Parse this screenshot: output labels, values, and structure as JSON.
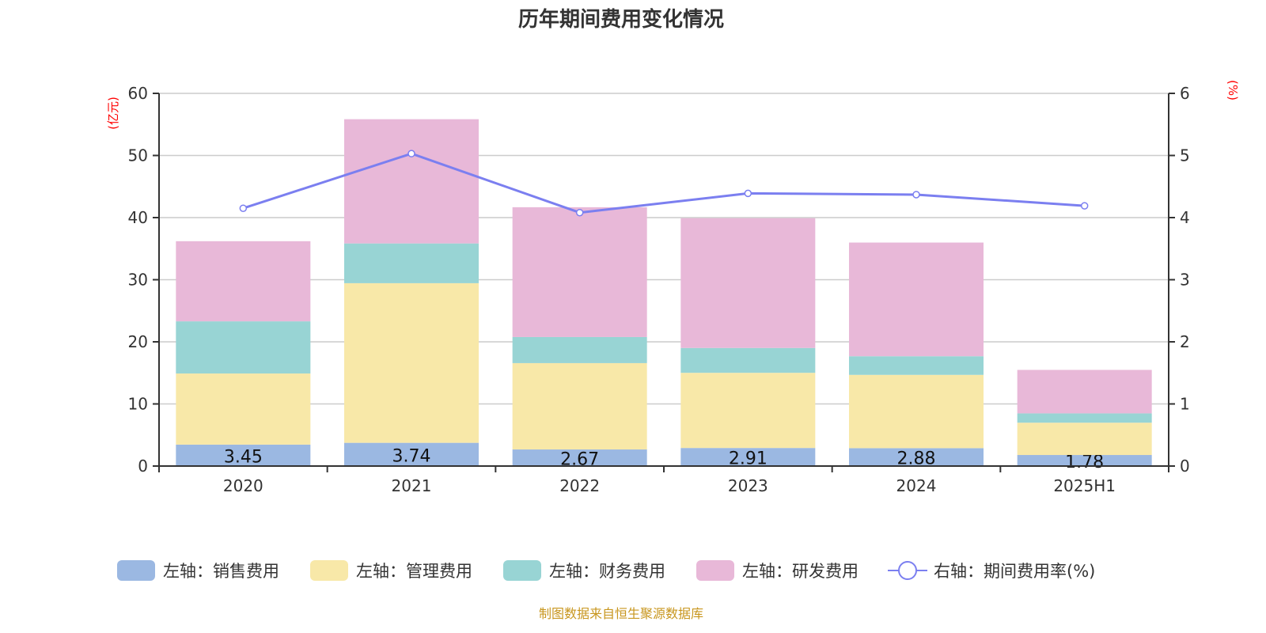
{
  "chart_data": {
    "type": "bar",
    "stacked": true,
    "title": "历年期间费用变化情况",
    "ylabel_left": "(亿元)",
    "ylabel_right": "(%)",
    "ylim_left": [
      0,
      60
    ],
    "ylim_right": [
      0,
      6
    ],
    "yticks_left": [
      0,
      10,
      20,
      30,
      40,
      50,
      60
    ],
    "yticks_right": [
      0,
      1,
      2,
      3,
      4,
      5,
      6
    ],
    "grid": true,
    "legend_position": "bottom",
    "categories": [
      "2020",
      "2021",
      "2022",
      "2023",
      "2024",
      "2025H1"
    ],
    "series": [
      {
        "name": "左轴：销售费用",
        "axis": "left",
        "color": "#9bb8e2",
        "values": [
          3.45,
          3.74,
          2.67,
          2.91,
          2.88,
          1.78
        ],
        "labels": [
          "3.45",
          "3.74",
          "2.67",
          "2.91",
          "2.88",
          "1.78"
        ]
      },
      {
        "name": "左轴：管理费用",
        "axis": "left",
        "color": "#f8e8a8",
        "values": [
          11.45,
          25.7,
          13.9,
          12.1,
          11.8,
          5.2
        ]
      },
      {
        "name": "左轴：财务费用",
        "axis": "left",
        "color": "#98d4d4",
        "values": [
          8.4,
          6.4,
          4.2,
          4.0,
          3.0,
          1.5
        ]
      },
      {
        "name": "左轴：研发费用",
        "axis": "left",
        "color": "#e8b8d8",
        "values": [
          12.9,
          20.0,
          20.9,
          20.9,
          18.3,
          7.0
        ]
      },
      {
        "name": "右轴：期间费用率(%)",
        "axis": "right",
        "type": "line",
        "color": "#7b7ff0",
        "values": [
          4.15,
          5.03,
          4.08,
          4.39,
          4.37,
          4.19
        ]
      }
    ]
  },
  "footer": {
    "source": "制图数据来自恒生聚源数据库"
  }
}
